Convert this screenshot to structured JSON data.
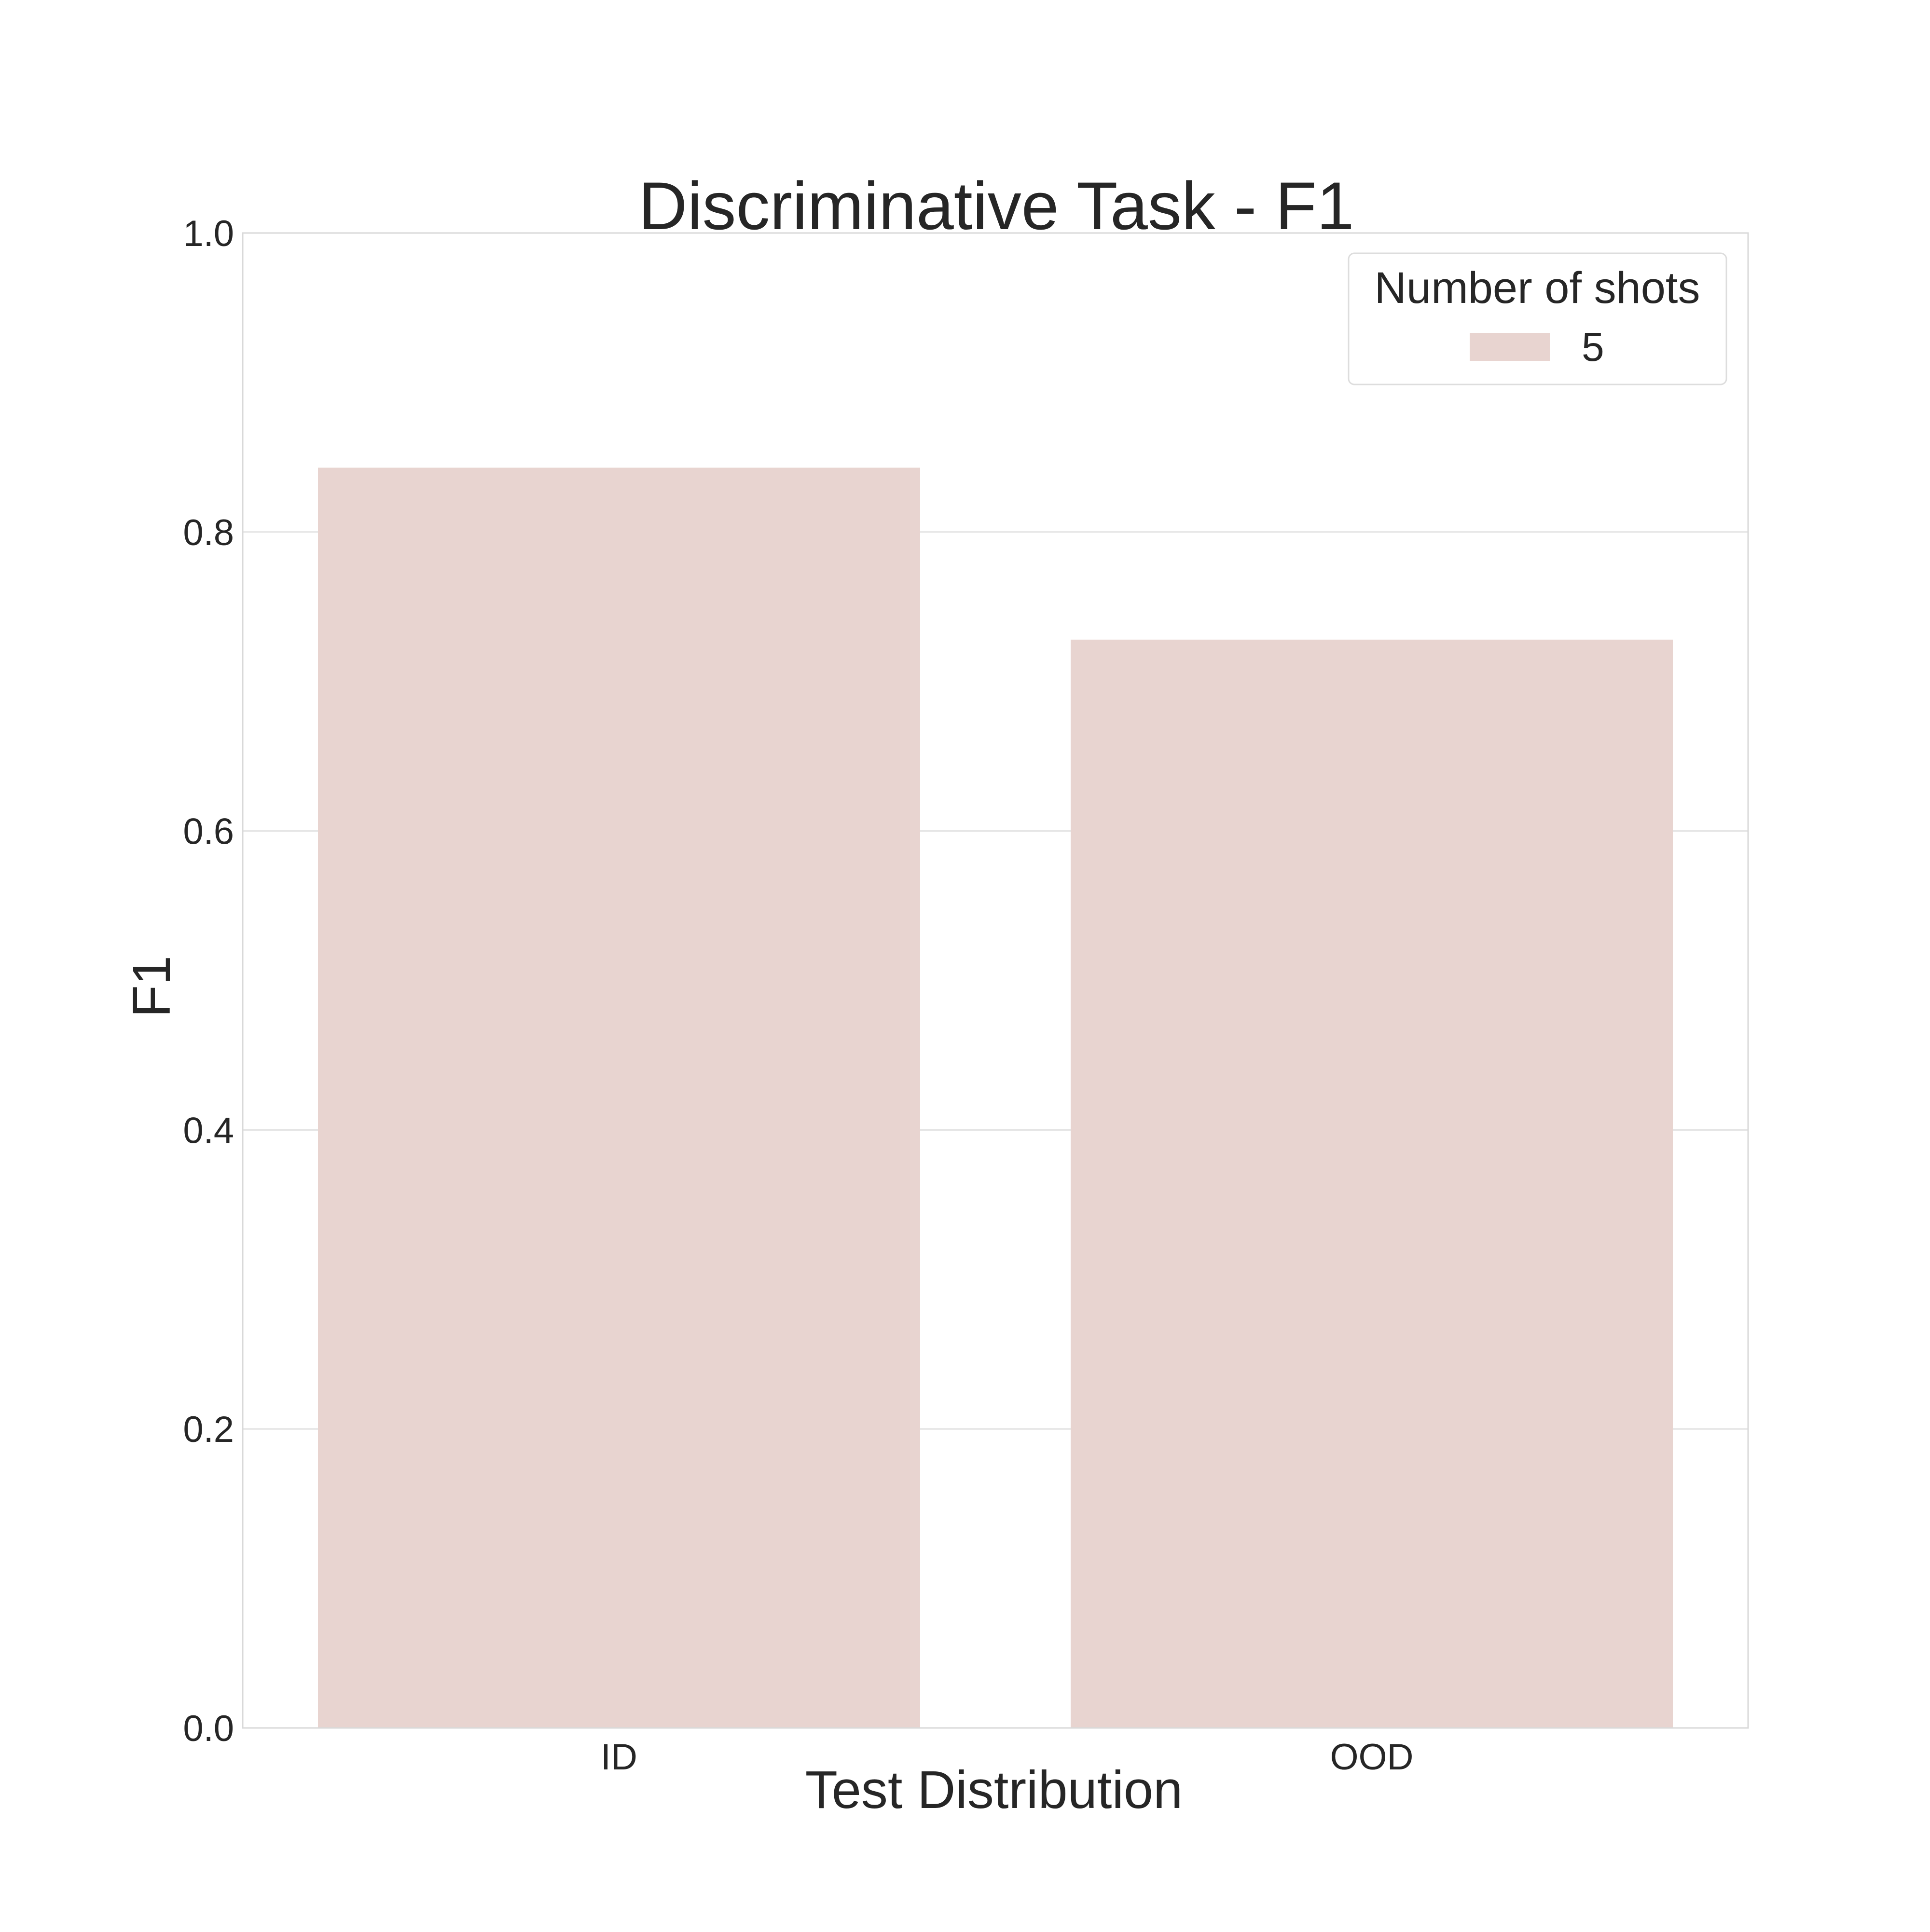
{
  "chart_data": {
    "type": "bar",
    "title": "Discriminative Task - F1",
    "xlabel": "Test Distribution",
    "ylabel": "F1",
    "categories": [
      "ID",
      "OOD"
    ],
    "series": [
      {
        "name": "5",
        "values": [
          0.843,
          0.728
        ],
        "color": "#e8d4d0"
      }
    ],
    "ylim": [
      0,
      1.0
    ],
    "yticks": [
      "0.0",
      "0.2",
      "0.4",
      "0.6",
      "0.8",
      "1.0"
    ],
    "grid": true,
    "legend": {
      "title": "Number of shots",
      "placement": "top-right"
    }
  }
}
